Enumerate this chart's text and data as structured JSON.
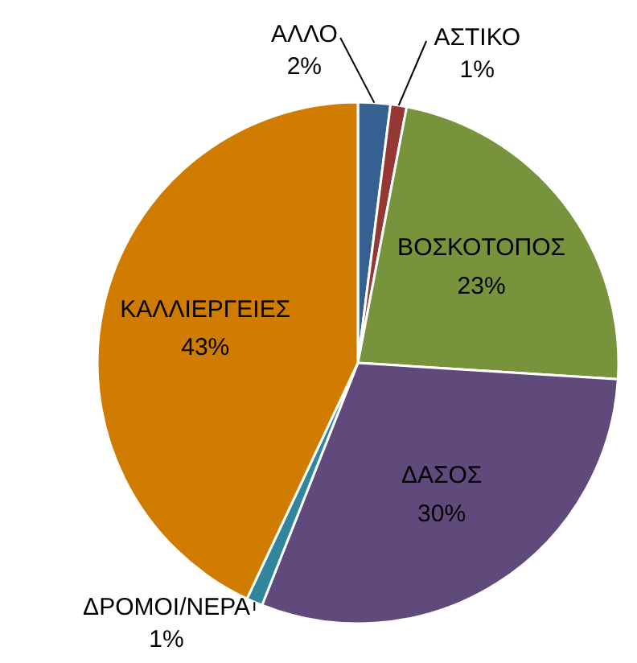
{
  "chart_data": {
    "type": "pie",
    "categories": [
      "ΑΛΛΟ",
      "ΑΣΤΙΚΟ",
      "ΒΟΣΚΟΤΟΠΟΣ",
      "ΔΑΣΟΣ",
      "ΔΡΟΜΟΙ/ΝΕΡΑ",
      "ΚΑΛΛΙΕΡΓΕΙΕΣ"
    ],
    "values": [
      2,
      1,
      23,
      30,
      1,
      43
    ],
    "value_labels": [
      "2%",
      "1%",
      "23%",
      "30%",
      "1%",
      "43%"
    ],
    "colors": [
      "#376092",
      "#953735",
      "#77933c",
      "#604a7b",
      "#31859c",
      "#d07c00"
    ]
  }
}
